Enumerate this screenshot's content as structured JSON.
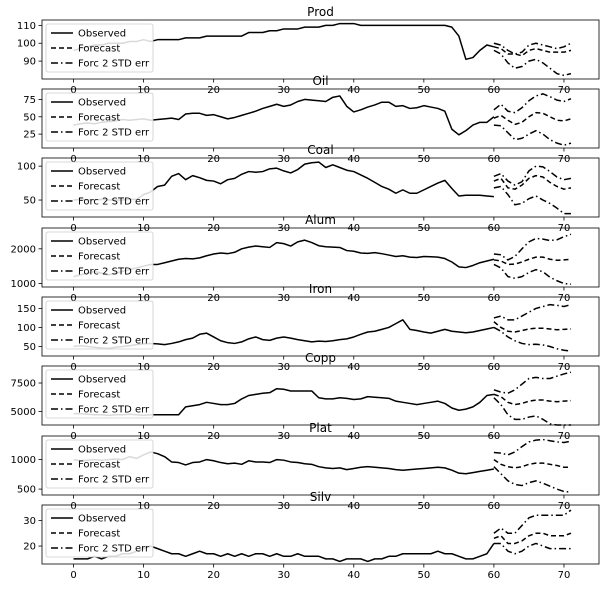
{
  "chart_data": {
    "type": "line",
    "legend_placement": "upper-left",
    "legend_labels": [
      "Observed",
      "Forecast",
      "Forc 2 STD err"
    ],
    "x_ticks": [
      0,
      10,
      20,
      30,
      40,
      50,
      60,
      70
    ],
    "xlim": [
      -4.5,
      75
    ],
    "grid": false,
    "panels": [
      {
        "title": "Prod",
        "ylim": [
          80,
          113
        ],
        "y_ticks": [
          90,
          100,
          110
        ],
        "observed_start": 0,
        "observed": [
          96,
          97,
          98,
          99,
          99,
          100,
          100,
          100,
          101,
          101,
          102,
          101,
          102,
          102,
          102,
          102,
          103,
          103,
          103,
          104,
          104,
          104,
          104,
          104,
          104,
          106,
          106,
          106,
          107,
          107,
          108,
          108,
          108,
          109,
          109,
          109,
          110,
          110,
          111,
          111,
          111,
          110,
          110,
          110,
          110,
          110,
          110,
          110,
          110,
          110,
          110,
          110,
          110,
          110,
          109,
          104,
          91,
          92,
          96,
          99,
          98
        ],
        "forecast_start": 60,
        "forecast": [
          98,
          97,
          94,
          94,
          93,
          96,
          97,
          96,
          95,
          95,
          95,
          96
        ],
        "forecast_upper": [
          100,
          99,
          96,
          94,
          95,
          99,
          100,
          99,
          98,
          97,
          98,
          100
        ],
        "forecast_lower": [
          96,
          94,
          89,
          86,
          87,
          90,
          91,
          89,
          86,
          83,
          82,
          83
        ]
      },
      {
        "title": "Oil",
        "ylim": [
          5,
          90
        ],
        "y_ticks": [
          25,
          50,
          75
        ],
        "observed_start": 0,
        "observed": [
          38,
          40,
          41,
          40,
          42,
          43,
          44,
          46,
          45,
          46,
          47,
          45,
          46,
          47,
          48,
          46,
          54,
          55,
          55,
          52,
          53,
          50,
          47,
          49,
          52,
          55,
          58,
          62,
          65,
          68,
          65,
          67,
          72,
          75,
          74,
          73,
          72,
          78,
          80,
          65,
          57,
          60,
          64,
          67,
          71,
          71,
          65,
          66,
          62,
          63,
          66,
          64,
          62,
          58,
          32,
          24,
          30,
          38,
          42,
          42,
          50
        ],
        "forecast_start": 60,
        "forecast": [
          48,
          52,
          45,
          39,
          42,
          50,
          56,
          55,
          50,
          45,
          44,
          47
        ],
        "forecast_upper": [
          60,
          68,
          58,
          56,
          63,
          73,
          80,
          83,
          79,
          74,
          72,
          76
        ],
        "forecast_lower": [
          38,
          37,
          27,
          17,
          19,
          25,
          30,
          25,
          17,
          12,
          9,
          12
        ]
      },
      {
        "title": "Coal",
        "ylim": [
          25,
          112
        ],
        "y_ticks": [
          50,
          100
        ],
        "observed_start": 0,
        "observed": [
          50,
          51,
          50,
          50,
          51,
          50,
          50,
          50,
          51,
          51,
          58,
          62,
          70,
          72,
          85,
          89,
          80,
          86,
          83,
          79,
          78,
          74,
          80,
          82,
          88,
          92,
          91,
          92,
          96,
          97,
          93,
          90,
          95,
          103,
          105,
          106,
          98,
          102,
          98,
          94,
          92,
          87,
          82,
          76,
          70,
          66,
          60,
          65,
          60,
          60,
          65,
          70,
          75,
          79,
          67,
          56,
          57,
          57,
          57,
          56,
          55
        ],
        "forecast_start": 60,
        "forecast": [
          78,
          82,
          68,
          66,
          72,
          82,
          86,
          84,
          76,
          70,
          66,
          68
        ],
        "forecast_upper": [
          85,
          89,
          78,
          72,
          77,
          93,
          100,
          99,
          92,
          84,
          80,
          82
        ],
        "forecast_lower": [
          68,
          70,
          58,
          43,
          45,
          52,
          56,
          50,
          45,
          38,
          30,
          30
        ]
      },
      {
        "title": "Alum",
        "ylim": [
          900,
          2600
        ],
        "y_ticks": [
          1000,
          2000
        ],
        "observed_start": 0,
        "observed": [
          1200,
          1250,
          1300,
          1350,
          1300,
          1250,
          1300,
          1350,
          1400,
          1450,
          1500,
          1550,
          1550,
          1600,
          1650,
          1700,
          1720,
          1710,
          1740,
          1800,
          1850,
          1880,
          1860,
          1900,
          2000,
          2050,
          2080,
          2060,
          2040,
          2180,
          2150,
          2080,
          2200,
          2250,
          2180,
          2090,
          2060,
          2050,
          2040,
          1950,
          1930,
          1880,
          1870,
          1890,
          1860,
          1820,
          1780,
          1800,
          1760,
          1750,
          1780,
          1770,
          1760,
          1720,
          1620,
          1480,
          1460,
          1520,
          1600,
          1650,
          1700
        ],
        "forecast_start": 60,
        "forecast": [
          1680,
          1650,
          1550,
          1560,
          1620,
          1700,
          1760,
          1760,
          1700,
          1670,
          1680,
          1700
        ],
        "forecast_upper": [
          1850,
          1830,
          1680,
          1780,
          2000,
          2200,
          2300,
          2280,
          2240,
          2260,
          2350,
          2420
        ],
        "forecast_lower": [
          1550,
          1450,
          1200,
          1150,
          1200,
          1320,
          1400,
          1340,
          1180,
          1080,
          1000,
          980
        ]
      },
      {
        "title": "Iron",
        "ylim": [
          25,
          180
        ],
        "y_ticks": [
          50,
          100,
          150
        ],
        "observed_start": 0,
        "observed": [
          50,
          52,
          50,
          48,
          46,
          45,
          48,
          50,
          52,
          55,
          57,
          58,
          57,
          55,
          58,
          62,
          68,
          72,
          82,
          85,
          75,
          65,
          60,
          58,
          62,
          70,
          75,
          68,
          66,
          72,
          75,
          72,
          68,
          65,
          62,
          64,
          63,
          65,
          68,
          70,
          75,
          82,
          88,
          90,
          95,
          100,
          110,
          120,
          95,
          92,
          88,
          85,
          90,
          95,
          90,
          88,
          86,
          88,
          92,
          96,
          100
        ],
        "forecast_start": 60,
        "forecast": [
          115,
          100,
          90,
          88,
          92,
          96,
          98,
          98,
          96,
          94,
          95,
          96
        ],
        "forecast_upper": [
          125,
          130,
          120,
          120,
          130,
          140,
          150,
          155,
          160,
          158,
          155,
          160
        ],
        "forecast_lower": [
          100,
          90,
          75,
          65,
          58,
          55,
          56,
          54,
          50,
          44,
          40,
          38
        ]
      },
      {
        "title": "Copp",
        "ylim": [
          3800,
          9000
        ],
        "y_ticks": [
          5000,
          7500
        ],
        "observed_start": 0,
        "observed": [
          4800,
          4800,
          4750,
          4700,
          4700,
          4650,
          4700,
          4700,
          4750,
          4700,
          4650,
          4700,
          4700,
          4700,
          4700,
          4700,
          5400,
          5500,
          5600,
          5800,
          5700,
          5600,
          5600,
          5700,
          6100,
          6400,
          6500,
          6600,
          6650,
          7000,
          6950,
          6800,
          6800,
          6800,
          6800,
          6200,
          6100,
          6100,
          6200,
          6150,
          6050,
          6100,
          6300,
          6250,
          6200,
          6150,
          5900,
          5800,
          5700,
          5600,
          5700,
          5800,
          5900,
          5700,
          5300,
          5100,
          5200,
          5400,
          5800,
          6400,
          6500
        ],
        "forecast_start": 60,
        "forecast": [
          6500,
          6300,
          5800,
          5600,
          5700,
          5900,
          6000,
          6000,
          5900,
          5850,
          5900,
          5950
        ],
        "forecast_upper": [
          6900,
          6700,
          6600,
          6900,
          7400,
          7900,
          8000,
          7900,
          7900,
          8100,
          8300,
          8450
        ],
        "forecast_lower": [
          6200,
          5600,
          4700,
          4300,
          4300,
          4500,
          4600,
          4300,
          3900,
          3800,
          3800,
          3800
        ]
      },
      {
        "title": "Plat",
        "ylim": [
          400,
          1400
        ],
        "y_ticks": [
          500,
          1000
        ],
        "observed_start": 0,
        "observed": [
          1000,
          980,
          990,
          1000,
          990,
          1000,
          1010,
          1000,
          1050,
          1020,
          1080,
          1130,
          1100,
          1050,
          960,
          950,
          910,
          950,
          960,
          1000,
          980,
          950,
          930,
          940,
          920,
          980,
          960,
          960,
          950,
          1000,
          990,
          960,
          950,
          930,
          920,
          880,
          860,
          850,
          860,
          830,
          850,
          870,
          880,
          870,
          860,
          850,
          830,
          820,
          830,
          840,
          850,
          860,
          870,
          860,
          820,
          770,
          760,
          780,
          800,
          820,
          840
        ],
        "forecast_start": 60,
        "forecast": [
          1000,
          920,
          880,
          860,
          880,
          920,
          940,
          940,
          920,
          900,
          870,
          870
        ],
        "forecast_upper": [
          1120,
          1110,
          1080,
          1130,
          1220,
          1300,
          1330,
          1340,
          1320,
          1300,
          1290,
          1310
        ],
        "forecast_lower": [
          880,
          760,
          640,
          580,
          560,
          610,
          640,
          600,
          550,
          500,
          460,
          450
        ]
      },
      {
        "title": "Silv",
        "ylim": [
          13,
          36
        ],
        "y_ticks": [
          20,
          30
        ],
        "observed_start": 0,
        "observed": [
          15,
          15,
          15,
          16,
          15,
          16,
          16,
          17,
          17,
          18,
          19,
          20,
          19,
          18,
          17,
          17,
          16,
          17,
          18,
          17,
          17,
          16,
          17,
          16,
          17,
          16,
          17,
          17,
          16,
          17,
          16,
          16,
          17,
          16,
          16,
          16,
          15,
          15,
          14,
          15,
          15,
          15,
          14,
          15,
          15,
          16,
          16,
          17,
          17,
          17,
          17,
          17,
          18,
          17,
          17,
          16,
          15,
          15,
          16,
          17,
          21
        ],
        "forecast_start": 60,
        "forecast": [
          23,
          24,
          21,
          21,
          22,
          24,
          25,
          25,
          24,
          24,
          24,
          25
        ],
        "forecast_upper": [
          25,
          27,
          25,
          25,
          28,
          31,
          32,
          32,
          32,
          32,
          32,
          34
        ],
        "forecast_lower": [
          21,
          21,
          18,
          17,
          18,
          20,
          21,
          20,
          19,
          19,
          19,
          19
        ]
      }
    ]
  }
}
